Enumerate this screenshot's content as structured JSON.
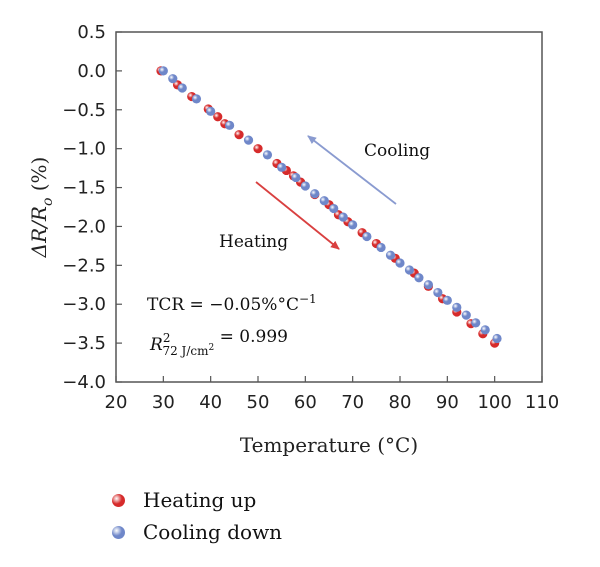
{
  "chart_data": {
    "type": "scatter",
    "xlabel": "Temperature (°C)",
    "ylabel_parts": {
      "delta": "ΔR/R",
      "sub": "o",
      "unit": " (%)"
    },
    "xlim": [
      20,
      110
    ],
    "ylim": [
      -4.0,
      0.5
    ],
    "xticks": [
      "20",
      "30",
      "40",
      "50",
      "60",
      "70",
      "80",
      "90",
      "100",
      "110"
    ],
    "yticks": [
      "0.5",
      "0.0",
      "−0.5",
      "−1.0",
      "−1.5",
      "−2.0",
      "−2.5",
      "−3.0",
      "−3.5",
      "−4.0"
    ],
    "series": [
      {
        "name": "Heating up",
        "color": "#d62b2b",
        "x": [
          29.5,
          33,
          36,
          39.5,
          41.5,
          43,
          46,
          50,
          54,
          56,
          57.5,
          59,
          62,
          65,
          67,
          69,
          72,
          75,
          79,
          83,
          86,
          89,
          92,
          95,
          97.5,
          100
        ],
        "y": [
          0.0,
          -0.18,
          -0.33,
          -0.49,
          -0.59,
          -0.68,
          -0.82,
          -1.0,
          -1.19,
          -1.28,
          -1.35,
          -1.43,
          -1.59,
          -1.72,
          -1.85,
          -1.94,
          -2.08,
          -2.22,
          -2.41,
          -2.6,
          -2.77,
          -2.93,
          -3.1,
          -3.25,
          -3.38,
          -3.5
        ]
      },
      {
        "name": "Cooling down",
        "color": "#6f87c9",
        "x": [
          30,
          32,
          34,
          37,
          40,
          44,
          48,
          52,
          55,
          58,
          60,
          62,
          64,
          66,
          68,
          70,
          73,
          76,
          78,
          80,
          82,
          84,
          86,
          88,
          90,
          92,
          94,
          96,
          98,
          100.5
        ],
        "y": [
          0.0,
          -0.1,
          -0.22,
          -0.36,
          -0.52,
          -0.7,
          -0.89,
          -1.08,
          -1.24,
          -1.37,
          -1.48,
          -1.58,
          -1.67,
          -1.77,
          -1.88,
          -1.98,
          -2.13,
          -2.27,
          -2.37,
          -2.47,
          -2.56,
          -2.66,
          -2.75,
          -2.85,
          -2.95,
          -3.04,
          -3.14,
          -3.24,
          -3.33,
          -3.44
        ]
      }
    ],
    "annotations": {
      "cooling_label": "Cooling",
      "heating_label": "Heating",
      "tcr": "TCR = −0.05%°C",
      "tcr_sup": "−1",
      "r2_base": "R",
      "r2_sup": "2",
      "r2_sub": "72 J/cm",
      "r2_sub_sup": "2",
      "r2_value": " = 0.999"
    },
    "annotation_colors": {
      "cooling": "#5a6fb8",
      "heating": "#cc2a2a",
      "cooling_arrow": "#8a9bd0",
      "heating_arrow": "#d94040"
    },
    "legend_position": "bottom-left",
    "grid": false
  }
}
